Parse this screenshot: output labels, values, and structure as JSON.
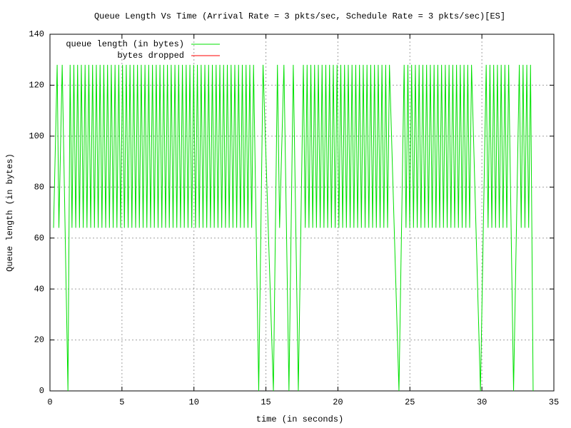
{
  "chart_data": {
    "type": "line",
    "title": "Queue Length Vs Time (Arrival Rate = 3 pkts/sec, Schedule Rate = 3 pkts/sec)[ES]",
    "x_label": "time (in seconds)",
    "y_label": "Queue length (in bytes)",
    "xlim": [
      0,
      35
    ],
    "xticks": [
      0,
      5,
      10,
      15,
      20,
      25,
      30,
      35
    ],
    "ylim": [
      0,
      140
    ],
    "yticks": [
      0,
      20,
      40,
      60,
      80,
      100,
      120,
      140
    ],
    "grid": true,
    "legend": "top-left",
    "x": [
      0.25,
      0.5,
      0.62,
      0.85,
      1.25,
      1.4,
      1.53,
      1.66,
      1.79,
      1.92,
      2.05,
      2.18,
      2.31,
      2.44,
      2.57,
      2.7,
      2.83,
      2.96,
      3.09,
      3.22,
      3.35,
      3.48,
      3.61,
      3.74,
      3.87,
      4.0,
      4.13,
      4.26,
      4.39,
      4.52,
      4.65,
      4.78,
      4.91,
      5.04,
      5.17,
      5.3,
      5.43,
      5.56,
      5.69,
      5.82,
      5.95,
      6.08,
      6.21,
      6.34,
      6.47,
      6.6,
      6.73,
      6.86,
      6.99,
      7.12,
      7.25,
      7.38,
      7.51,
      7.64,
      7.77,
      7.9,
      8.03,
      8.16,
      8.29,
      8.42,
      8.55,
      8.68,
      8.81,
      8.94,
      9.07,
      9.2,
      9.33,
      9.46,
      9.59,
      9.72,
      9.85,
      9.98,
      10.11,
      10.24,
      10.37,
      10.5,
      10.63,
      10.76,
      10.89,
      11.02,
      11.15,
      11.28,
      11.41,
      11.54,
      11.67,
      11.8,
      11.93,
      12.06,
      12.19,
      12.32,
      12.45,
      12.58,
      12.71,
      12.84,
      12.97,
      13.1,
      13.23,
      13.36,
      13.49,
      13.62,
      13.75,
      13.88,
      14.01,
      14.14,
      14.5,
      14.8,
      15.52,
      15.8,
      15.95,
      16.25,
      16.6,
      16.9,
      17.25,
      17.6,
      17.73,
      17.86,
      17.99,
      18.12,
      18.25,
      18.38,
      18.51,
      18.64,
      18.77,
      18.9,
      19.03,
      19.16,
      19.29,
      19.42,
      19.55,
      19.68,
      19.81,
      19.94,
      20.07,
      20.2,
      20.33,
      20.46,
      20.59,
      20.72,
      20.85,
      20.98,
      21.11,
      21.24,
      21.37,
      21.5,
      21.63,
      21.76,
      21.89,
      22.02,
      22.15,
      22.28,
      22.41,
      22.54,
      22.67,
      22.8,
      22.93,
      23.06,
      23.19,
      23.32,
      23.45,
      23.58,
      24.24,
      24.6,
      24.73,
      24.86,
      24.99,
      25.12,
      25.25,
      25.38,
      25.51,
      25.64,
      25.77,
      25.9,
      26.03,
      26.16,
      26.29,
      26.42,
      26.55,
      26.68,
      26.81,
      26.94,
      27.07,
      27.2,
      27.33,
      27.46,
      27.59,
      27.72,
      27.85,
      27.98,
      28.11,
      28.24,
      28.37,
      28.5,
      28.63,
      28.76,
      28.89,
      29.02,
      29.15,
      29.28,
      29.9,
      30.3,
      30.43,
      30.56,
      30.69,
      30.82,
      30.95,
      31.08,
      31.21,
      31.34,
      31.47,
      31.6,
      31.73,
      31.86,
      32.2,
      32.6,
      32.73,
      32.86,
      32.99,
      33.12,
      33.25,
      33.38,
      33.56
    ],
    "series": [
      {
        "name": "queue length (in bytes)",
        "color": "#00e000",
        "values": [
          64,
          128,
          64,
          128,
          0,
          128,
          64,
          128,
          64,
          128,
          64,
          128,
          64,
          128,
          64,
          128,
          64,
          128,
          64,
          128,
          64,
          128,
          64,
          128,
          64,
          128,
          64,
          128,
          64,
          128,
          64,
          128,
          64,
          128,
          64,
          128,
          64,
          128,
          64,
          128,
          64,
          128,
          64,
          128,
          64,
          128,
          64,
          128,
          64,
          128,
          64,
          128,
          64,
          128,
          64,
          128,
          64,
          128,
          64,
          128,
          64,
          128,
          64,
          128,
          64,
          128,
          64,
          128,
          64,
          128,
          64,
          128,
          64,
          128,
          64,
          128,
          64,
          128,
          64,
          128,
          64,
          128,
          64,
          128,
          64,
          128,
          64,
          128,
          64,
          128,
          64,
          128,
          64,
          128,
          64,
          128,
          64,
          128,
          64,
          128,
          64,
          128,
          64,
          128,
          0,
          128,
          0,
          128,
          64,
          128,
          0,
          128,
          0,
          128,
          64,
          128,
          64,
          128,
          64,
          128,
          64,
          128,
          64,
          128,
          64,
          128,
          64,
          128,
          64,
          128,
          64,
          128,
          64,
          128,
          64,
          128,
          64,
          128,
          64,
          128,
          64,
          128,
          64,
          128,
          64,
          128,
          64,
          128,
          64,
          128,
          64,
          128,
          64,
          128,
          64,
          128,
          64,
          128,
          64,
          128,
          0,
          128,
          64,
          128,
          64,
          128,
          64,
          128,
          64,
          128,
          64,
          128,
          64,
          128,
          64,
          128,
          64,
          128,
          64,
          128,
          64,
          128,
          64,
          128,
          64,
          128,
          64,
          128,
          64,
          128,
          64,
          128,
          64,
          128,
          64,
          128,
          64,
          128,
          0,
          128,
          64,
          128,
          64,
          128,
          64,
          128,
          64,
          128,
          64,
          128,
          64,
          128,
          0,
          128,
          64,
          128,
          64,
          128,
          64,
          128,
          0
        ]
      },
      {
        "name": "bytes dropped",
        "color": "#ff0000"
      }
    ]
  }
}
